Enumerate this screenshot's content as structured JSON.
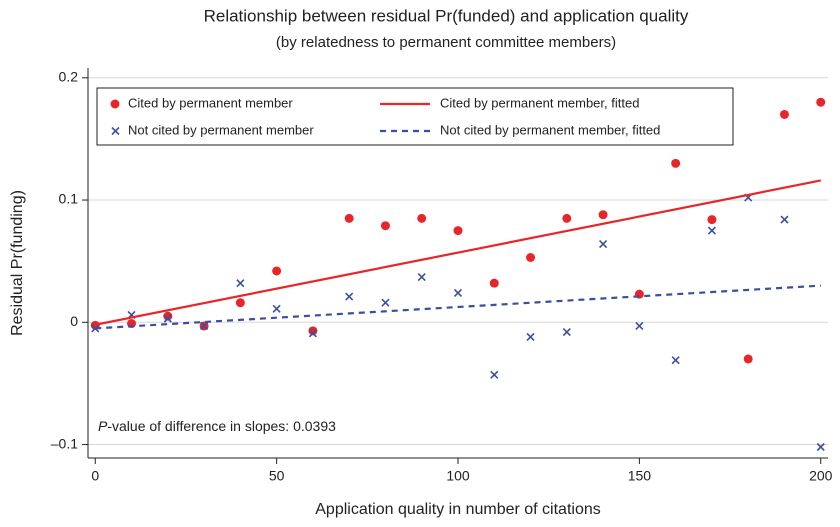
{
  "chart_data": {
    "type": "scatter",
    "title": "Relationship between residual Pr(funded) and application quality",
    "subtitle": "(by relatedness to permanent committee members)",
    "x_label": "Application quality in number of citations",
    "y_label": "Residual Pr(funding)",
    "xlim": [
      -2,
      202
    ],
    "ylim": [
      -0.111,
      0.208
    ],
    "xticks": [
      0,
      50,
      100,
      150,
      200
    ],
    "yticks": [
      {
        "value": -0.1,
        "label": "–0.1"
      },
      0,
      0.1,
      0.2
    ],
    "grid": true,
    "annotation": {
      "italic": "P",
      "text": "-value of difference in slopes: 0.0393"
    },
    "series": [
      {
        "name": "Cited by permanent member",
        "color": "#e8262a",
        "marker": "circle",
        "x": [
          0,
          10,
          20,
          30,
          40,
          50,
          60,
          70,
          80,
          90,
          100,
          110,
          120,
          130,
          140,
          150,
          160,
          170,
          180,
          190,
          200
        ],
        "values": [
          -0.0025,
          -0.001,
          0.005,
          -0.003,
          0.016,
          0.042,
          -0.007,
          0.085,
          0.079,
          0.085,
          0.075,
          0.032,
          0.053,
          0.085,
          0.088,
          0.023,
          0.13,
          0.084,
          -0.03,
          0.17,
          0.18
        ]
      },
      {
        "name": "Not cited by permanent member",
        "color": "#3b4fa0",
        "marker": "x",
        "x": [
          0,
          10,
          20,
          30,
          40,
          50,
          60,
          70,
          80,
          90,
          100,
          110,
          120,
          130,
          140,
          150,
          160,
          170,
          180,
          190,
          200
        ],
        "values": [
          -0.005,
          0.006,
          0.003,
          -0.003,
          0.032,
          0.011,
          -0.009,
          0.021,
          0.016,
          0.037,
          0.024,
          -0.043,
          -0.012,
          -0.008,
          0.064,
          -0.003,
          -0.031,
          0.075,
          0.102,
          0.084,
          -0.102
        ]
      },
      {
        "name": "Cited by permanent member, fitted",
        "color": "#e8262a",
        "marker": "line",
        "x": [
          0,
          200
        ],
        "values": [
          -0.002,
          0.116
        ]
      },
      {
        "name": "Not cited by permanent member, fitted",
        "color": "#3b4fa0",
        "marker": "dashed",
        "x": [
          0,
          200
        ],
        "values": [
          -0.005,
          0.03
        ]
      }
    ]
  }
}
